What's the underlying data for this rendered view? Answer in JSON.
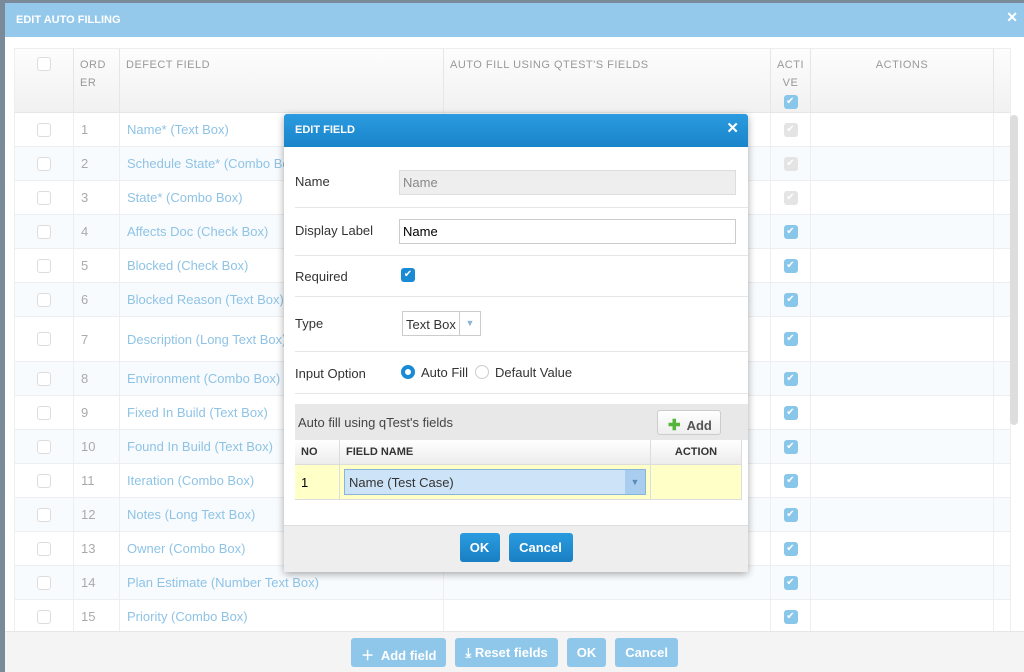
{
  "outer": {
    "title": "EDIT AUTO FILLING",
    "columns": [
      "ORDER",
      "DEFECT FIELD",
      "AUTO FILL USING QTEST'S FIELDS",
      "ACTIVE",
      "ACTIONS"
    ],
    "rows": [
      {
        "order": "1",
        "field": "Name* (Text Box)",
        "active": "disabled"
      },
      {
        "order": "2",
        "field": "Schedule State* (Combo Box)",
        "active": "disabled"
      },
      {
        "order": "3",
        "field": "State* (Combo Box)",
        "active": "disabled"
      },
      {
        "order": "4",
        "field": "Affects Doc (Check Box)",
        "active": "checked"
      },
      {
        "order": "5",
        "field": "Blocked (Check Box)",
        "active": "checked"
      },
      {
        "order": "6",
        "field": "Blocked Reason (Text Box)",
        "active": "checked"
      },
      {
        "order": "7",
        "field": "Description (Long Text Box)",
        "active": "checked"
      },
      {
        "order": "8",
        "field": "Environment (Combo Box)",
        "active": "checked"
      },
      {
        "order": "9",
        "field": "Fixed In Build (Text Box)",
        "active": "checked"
      },
      {
        "order": "10",
        "field": "Found In Build (Text Box)",
        "active": "checked"
      },
      {
        "order": "11",
        "field": "Iteration (Combo Box)",
        "active": "checked"
      },
      {
        "order": "12",
        "field": "Notes (Long Text Box)",
        "active": "checked"
      },
      {
        "order": "13",
        "field": "Owner (Combo Box)",
        "active": "checked"
      },
      {
        "order": "14",
        "field": "Plan Estimate (Number Text Box)",
        "active": "checked"
      },
      {
        "order": "15",
        "field": "Priority (Combo Box)",
        "active": "checked"
      }
    ],
    "footer": {
      "add_field": "Add field",
      "reset_fields": "Reset fields",
      "ok": "OK",
      "cancel": "Cancel"
    }
  },
  "dialog": {
    "title": "EDIT FIELD",
    "name_label": "Name",
    "name_value": "Name",
    "display_label": "Display Label",
    "display_value": "Name",
    "required_label": "Required",
    "required": true,
    "type_label": "Type",
    "type_value": "Text Box",
    "input_option_label": "Input Option",
    "option_auto": "Auto Fill",
    "option_default": "Default Value",
    "selected_option": "Auto Fill",
    "section_title": "Auto fill using qTest's fields",
    "add_label": "Add",
    "col_no": "NO",
    "col_field": "FIELD NAME",
    "col_action": "ACTION",
    "mapping_rows": [
      {
        "no": "1",
        "field": "Name (Test Case)"
      }
    ],
    "ok": "OK",
    "cancel": "Cancel"
  },
  "colors": {
    "accent": "#1a84c9",
    "header_faded": "#94c9ec",
    "row_highlight": "#ffffc8"
  }
}
